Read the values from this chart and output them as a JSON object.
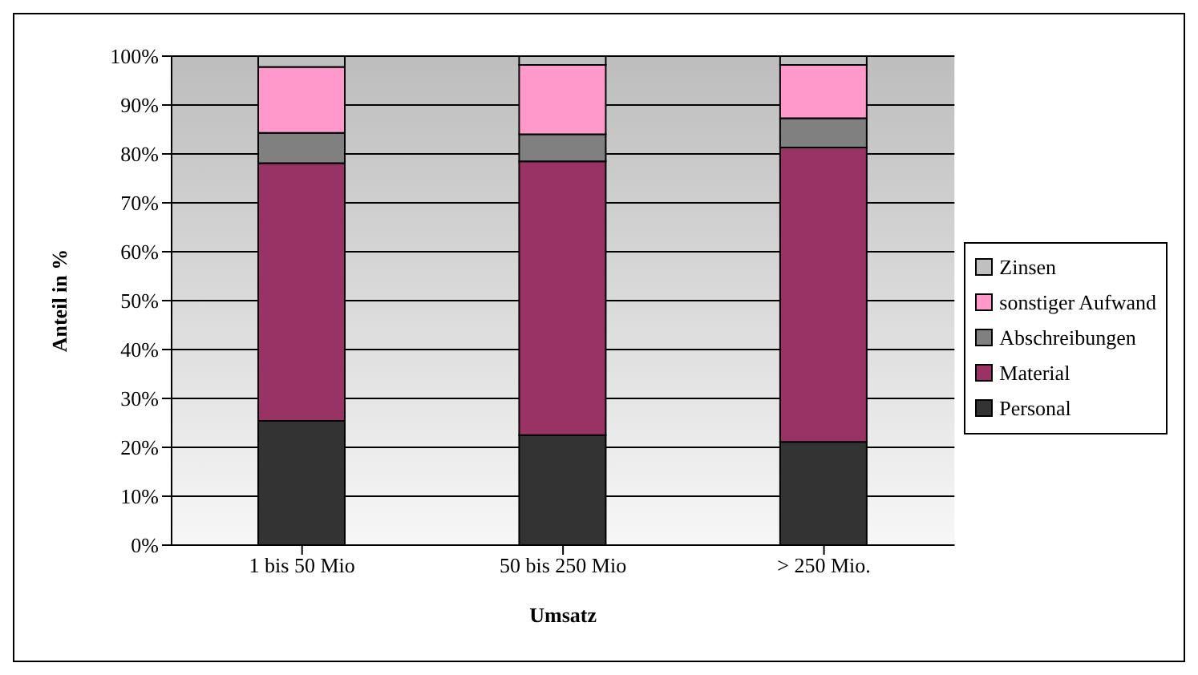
{
  "chart_data": {
    "type": "bar",
    "stacked": true,
    "xlabel": "Umsatz",
    "ylabel": "Anteil in %",
    "categories": [
      "1 bis 50 Mio",
      "50 bis 250 Mio",
      "> 250 Mio."
    ],
    "series": [
      {
        "name": "Personal",
        "color": "#333333",
        "values": [
          25.4,
          22.5,
          21.1
        ]
      },
      {
        "name": "Material",
        "color": "#993366",
        "values": [
          52.7,
          56.0,
          60.2
        ]
      },
      {
        "name": "Abschreibungen",
        "color": "#808080",
        "values": [
          6.2,
          5.5,
          6.0
        ]
      },
      {
        "name": "sonstiger Aufwand",
        "color": "#ff99cc",
        "values": [
          13.5,
          14.2,
          10.9
        ]
      },
      {
        "name": "Zinsen",
        "color": "#c0c0c0",
        "values": [
          2.2,
          1.8,
          1.8
        ]
      }
    ],
    "ylim": [
      0,
      100
    ],
    "yticks": [
      {
        "value": 0,
        "label": "0%"
      },
      {
        "value": 10,
        "label": "10%"
      },
      {
        "value": 20,
        "label": "20%"
      },
      {
        "value": 30,
        "label": "30%"
      },
      {
        "value": 40,
        "label": "40%"
      },
      {
        "value": 50,
        "label": "50%"
      },
      {
        "value": 60,
        "label": "60%"
      },
      {
        "value": 70,
        "label": "70%"
      },
      {
        "value": 80,
        "label": "80%"
      },
      {
        "value": 90,
        "label": "90%"
      },
      {
        "value": 100,
        "label": "100%"
      }
    ],
    "grid": "y",
    "legend": "right"
  }
}
